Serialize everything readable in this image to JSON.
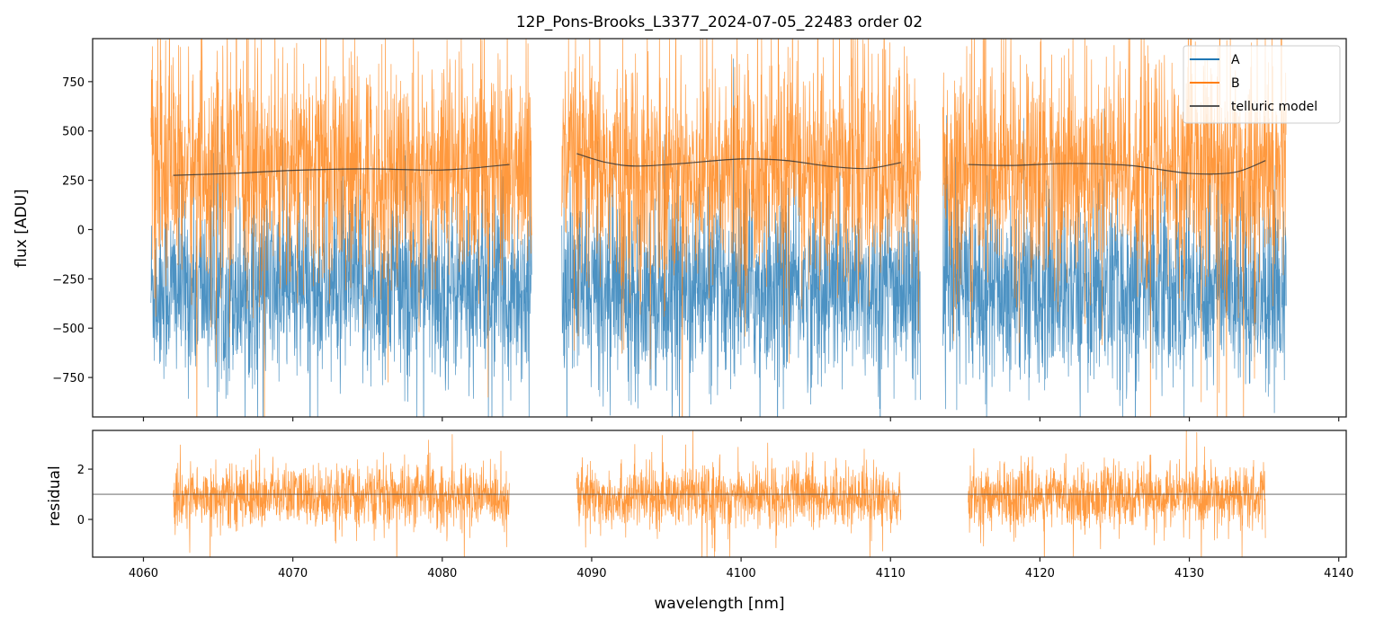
{
  "chart_data": {
    "type": "line",
    "title": "12P_Pons-Brooks_L3377_2024-07-05_22483  order 02",
    "xlabel": "wavelength [nm]",
    "xlim": [
      4056.6,
      4140.5
    ],
    "xticks": [
      4060,
      4070,
      4080,
      4090,
      4100,
      4110,
      4120,
      4130,
      4140
    ],
    "colors": {
      "A": "#1f77b4",
      "B": "#ff7f0e",
      "telluric": "#333333",
      "ref": "#555555"
    },
    "top": {
      "ylabel": "flux [ADU]",
      "ylim": [
        -950,
        968
      ],
      "yticks": [
        -750,
        -500,
        -250,
        0,
        250,
        500,
        750
      ],
      "ytick_labels": [
        "−750",
        "−500",
        "−250",
        "0",
        "250",
        "500",
        "750"
      ],
      "legend": {
        "position": "upper right",
        "entries": [
          "A",
          "B",
          "telluric model"
        ]
      },
      "series": [
        {
          "name": "A",
          "segments": [
            [
              4060.5,
              4086.0
            ],
            [
              4088.0,
              4112.0
            ],
            [
              4113.5,
              4136.5
            ]
          ],
          "mean": -300,
          "std": 230
        },
        {
          "name": "B",
          "segments": [
            [
              4060.5,
              4086.0
            ],
            [
              4088.0,
              4112.0
            ],
            [
              4113.5,
              4136.5
            ]
          ],
          "mean": 300,
          "std": 280
        },
        {
          "name": "telluric model",
          "segments": [
            [
              [
                4062,
                275
              ],
              [
                4066,
                285
              ],
              [
                4070,
                300
              ],
              [
                4075,
                308
              ],
              [
                4080,
                302
              ],
              [
                4084.5,
                330
              ]
            ],
            [
              [
                4089,
                385
              ],
              [
                4091,
                340
              ],
              [
                4093,
                322
              ],
              [
                4096,
                335
              ],
              [
                4100,
                358
              ],
              [
                4103,
                350
              ],
              [
                4106,
                320
              ],
              [
                4108.5,
                310
              ],
              [
                4110.7,
                340
              ]
            ],
            [
              [
                4115.2,
                330
              ],
              [
                4118,
                325
              ],
              [
                4122,
                335
              ],
              [
                4126,
                325
              ],
              [
                4130,
                285
              ],
              [
                4133,
                290
              ],
              [
                4135.1,
                350
              ]
            ]
          ]
        }
      ]
    },
    "bottom": {
      "ylabel": "residual",
      "ylim": [
        -1.5,
        3.54
      ],
      "yticks": [
        0,
        2
      ],
      "ytick_labels": [
        "0",
        "2"
      ],
      "reference_line": 1,
      "series": [
        {
          "name": "residual",
          "segments": [
            [
              4062.0,
              4084.5
            ],
            [
              4089.0,
              4110.7
            ],
            [
              4115.2,
              4135.1
            ]
          ],
          "mean": 0.9,
          "std": 0.6
        }
      ]
    }
  }
}
